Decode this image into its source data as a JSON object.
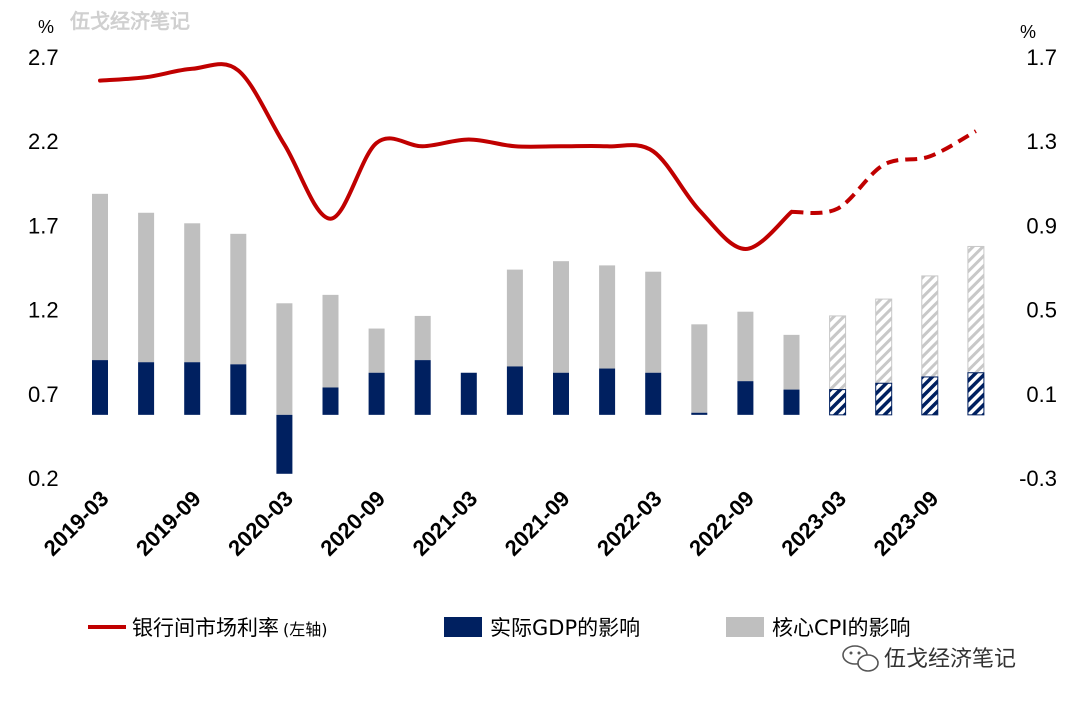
{
  "watermark": {
    "top_text": "伍戈经济笔记",
    "bottom_text": "伍戈经济笔记"
  },
  "colors": {
    "rate_line": "#c00000",
    "gdp_bar": "#002060",
    "cpi_bar": "#bfbfbf"
  },
  "chart_data": {
    "type": "bar",
    "left_axis": {
      "unit": "%",
      "ticks": [
        "2.7",
        "2.2",
        "1.7",
        "1.2",
        "0.7",
        "0.2"
      ],
      "range": [
        0.2,
        2.7
      ]
    },
    "right_axis": {
      "unit": "%",
      "ticks": [
        "1.7",
        "1.3",
        "0.9",
        "0.5",
        "0.1",
        "-0.3"
      ],
      "range": [
        -0.3,
        1.7
      ]
    },
    "x_tick_labels": [
      "2019-03",
      "2019-09",
      "2020-03",
      "2020-09",
      "2021-03",
      "2021-09",
      "2022-03",
      "2022-09",
      "2023-03",
      "2023-09"
    ],
    "x": [
      "2019-03",
      "2019-06",
      "2019-09",
      "2019-12",
      "2020-03",
      "2020-06",
      "2020-09",
      "2020-12",
      "2021-03",
      "2021-06",
      "2021-09",
      "2021-12",
      "2022-03",
      "2022-06",
      "2022-09",
      "2022-12",
      "2023-03",
      "2023-06",
      "2023-09",
      "2023-12"
    ],
    "forecast_from_index": 15,
    "legend": {
      "rate": "银行间市场利率",
      "rate_note": "(左轴)",
      "gdp": "实际GDP的影响",
      "cpi": "核心CPI的影响"
    },
    "series": [
      {
        "key": "rate",
        "axis": "left",
        "kind": "line",
        "values": [
          2.56,
          2.58,
          2.63,
          2.62,
          2.18,
          1.74,
          2.19,
          2.17,
          2.21,
          2.17,
          2.17,
          2.17,
          2.14,
          1.79,
          1.56,
          1.78,
          1.8,
          2.06,
          2.11,
          2.26
        ]
      },
      {
        "key": "gdp",
        "axis": "right",
        "kind": "bar",
        "values": [
          0.26,
          0.25,
          0.25,
          0.24,
          -0.28,
          0.13,
          0.2,
          0.26,
          0.2,
          0.23,
          0.2,
          0.22,
          0.2,
          0.01,
          0.16,
          0.12,
          0.12,
          0.15,
          0.18,
          0.2
        ]
      },
      {
        "key": "cpi",
        "axis": "right",
        "kind": "bar_stacked_top",
        "values": [
          0.79,
          0.71,
          0.66,
          0.62,
          0.53,
          0.44,
          0.21,
          0.21,
          0.0,
          0.46,
          0.53,
          0.49,
          0.48,
          0.42,
          0.33,
          0.26,
          0.35,
          0.4,
          0.48,
          0.6
        ]
      }
    ]
  }
}
